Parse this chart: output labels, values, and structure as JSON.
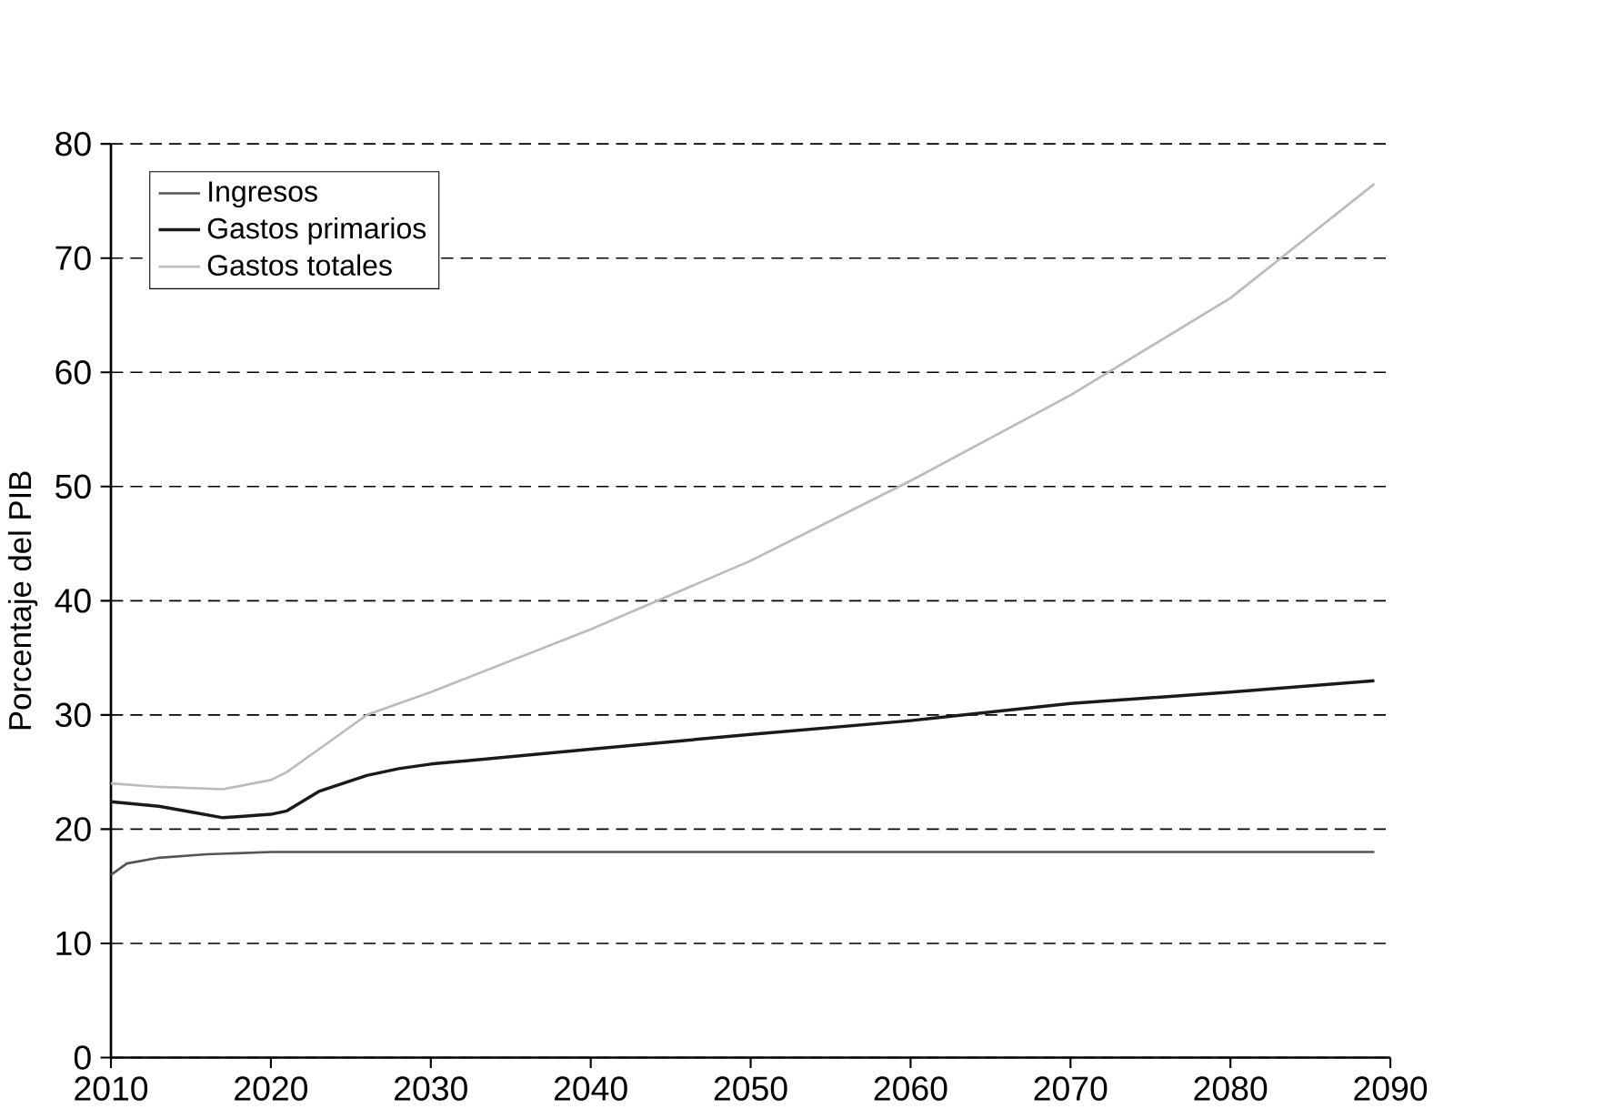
{
  "chart_data": {
    "type": "line",
    "ylabel": "Porcentaje del PIB",
    "xlim": [
      2010,
      2090
    ],
    "xticks": [
      2010,
      2020,
      2030,
      2040,
      2050,
      2060,
      2070,
      2080,
      2090
    ],
    "ylim": [
      0,
      80
    ],
    "yticks": [
      0,
      10,
      20,
      30,
      40,
      50,
      60,
      70,
      80
    ],
    "grid": "y",
    "legend": "top left",
    "line_style": "solid",
    "marker": "none",
    "series": [
      {
        "name": "Ingresos",
        "color": "#555555",
        "x": [
          2010,
          2011,
          2013,
          2016,
          2020,
          2089
        ],
        "values": [
          16,
          17,
          17.5,
          17.8,
          18,
          18
        ]
      },
      {
        "name": "Gastos primarios",
        "color": "#1a1a1a",
        "x": [
          2010,
          2013,
          2015,
          2017,
          2020,
          2021,
          2023,
          2026,
          2028,
          2030,
          2040,
          2050,
          2060,
          2070,
          2080,
          2089
        ],
        "values": [
          22.4,
          22,
          21.5,
          21,
          21.3,
          21.6,
          23.3,
          24.7,
          25.3,
          25.7,
          27,
          28.3,
          29.5,
          31,
          32,
          33
        ]
      },
      {
        "name": "Gastos totales",
        "color": "#bbbbbb",
        "x": [
          2010,
          2013,
          2017,
          2020,
          2021,
          2024,
          2026,
          2030,
          2040,
          2050,
          2060,
          2070,
          2080,
          2089
        ],
        "values": [
          24,
          23.7,
          23.5,
          24.3,
          25,
          28,
          30,
          32,
          37.5,
          43.5,
          50.5,
          58,
          66.5,
          76.5
        ]
      }
    ]
  }
}
